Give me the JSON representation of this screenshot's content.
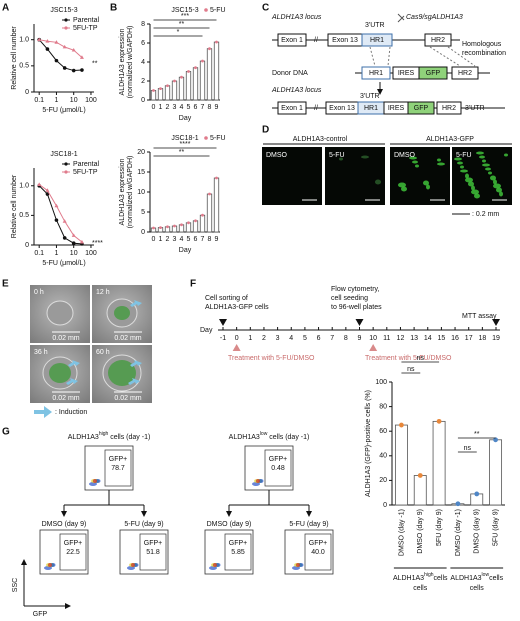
{
  "panel_labels": [
    "A",
    "B",
    "C",
    "D",
    "E",
    "F",
    "G"
  ],
  "chart_data": [
    {
      "type": "line",
      "title": "JSC15-3",
      "xlabel": "5-FU (μmol/L)",
      "ylabel": "Relative cell number",
      "log_x": true,
      "x": [
        0.1,
        0.3,
        1,
        3,
        10,
        30
      ],
      "xlim": [
        0.05,
        150
      ],
      "xticks": [
        0.1,
        1,
        10,
        100
      ],
      "ylim": [
        0,
        1.3
      ],
      "yticks": [
        0,
        0.5,
        {
          "value": 1,
          "label": "1.0"
        }
      ],
      "series": [
        {
          "name": "Parental",
          "color": "#111111",
          "values": [
            1.0,
            0.82,
            0.6,
            0.46,
            0.41,
            0.42
          ]
        },
        {
          "name": "5FU-TP",
          "color": "#e07b8c",
          "values": [
            1.0,
            0.97,
            0.95,
            0.86,
            0.8,
            0.66
          ]
        }
      ],
      "legend": "top-right",
      "annotations": [
        "**"
      ]
    },
    {
      "type": "line",
      "title": "JSC18-1",
      "xlabel": "5-FU (μmol/L)",
      "ylabel": "Relative cell number",
      "log_x": true,
      "x": [
        0.1,
        0.3,
        1,
        3,
        10,
        30
      ],
      "xlim": [
        0.05,
        150
      ],
      "xticks": [
        0.1,
        1,
        10,
        100
      ],
      "ylim": [
        0,
        1.3
      ],
      "yticks": [
        0,
        0.5,
        {
          "value": 1,
          "label": "1.0"
        }
      ],
      "series": [
        {
          "name": "Parental",
          "color": "#111111",
          "values": [
            1.0,
            0.86,
            0.42,
            0.12,
            0.03,
            0.02
          ]
        },
        {
          "name": "5FU-TP",
          "color": "#e07b8c",
          "values": [
            1.02,
            0.92,
            0.66,
            0.4,
            0.16,
            0.05
          ]
        }
      ],
      "legend": "top-right",
      "annotations": [
        "****"
      ]
    },
    {
      "type": "bar",
      "title": "JSC15-3",
      "xlabel": "Day",
      "ylabel": [
        "ALDH1A3 expression",
        "(normalized w/GAPDH)"
      ],
      "categories": [
        "0",
        "1",
        "2",
        "3",
        "4",
        "5",
        "6",
        "7",
        "8",
        "9"
      ],
      "series": [
        {
          "name": "5-FU",
          "color": "#e07b8c",
          "values": [
            1.0,
            1.2,
            1.5,
            2.0,
            2.4,
            3.0,
            3.4,
            4.1,
            5.4,
            6.1
          ]
        }
      ],
      "ylim": [
        0,
        8
      ],
      "yticks": [
        0,
        2,
        4,
        6,
        8
      ],
      "legend": "top-right",
      "annotations": [
        "***",
        "**",
        "*"
      ]
    },
    {
      "type": "bar",
      "title": "JSC18-1",
      "xlabel": "Day",
      "ylabel": [
        "ALDH1A3 expression",
        "(normalized w/GAPDH)"
      ],
      "categories": [
        "0",
        "1",
        "2",
        "3",
        "4",
        "5",
        "6",
        "7",
        "8",
        "9"
      ],
      "series": [
        {
          "name": "5-FU",
          "color": "#e07b8c",
          "values": [
            1.0,
            1.1,
            1.3,
            1.5,
            1.8,
            2.3,
            2.8,
            4.2,
            9.5,
            13.5
          ]
        }
      ],
      "ylim": [
        0,
        20
      ],
      "yticks": [
        0,
        5,
        10,
        15,
        20
      ],
      "legend": "top-right",
      "annotations": [
        "****",
        "**"
      ]
    },
    {
      "type": "bar",
      "ylabel": "ALDH1A3 (GFP)-positive cells (%)",
      "categories": [
        "DMSO (day -1)",
        "DMSO (day 9)",
        "5FU (day 9)",
        "DMSO (day -1)",
        "DMSO (day 9)",
        "5FU (day 9)"
      ],
      "values": [
        65,
        24,
        68,
        1,
        9,
        53
      ],
      "colors": [
        "#e8873a",
        "#e8873a",
        "#e8873a",
        "#4f86c6",
        "#4f86c6",
        "#4f86c6"
      ],
      "ylim": [
        0,
        100
      ],
      "yticks": [
        0,
        20,
        40,
        60,
        80,
        100
      ],
      "annotations": [
        "ns",
        "ns",
        "ns",
        "**"
      ],
      "groups": [
        {
          "name": "ALDH1A3",
          "sup": "high",
          "rest": "cells"
        },
        {
          "name": "ALDH1A3",
          "sup": "low",
          "rest": "cells"
        }
      ]
    }
  ],
  "construct": {
    "locus_label": "ALDH1A3 locus",
    "exon1": "Exon 1",
    "exon13": "Exon 13",
    "utr": "3'UTR",
    "hr1": "HR1",
    "hr2": "HR2",
    "cas9": "Cas9/sgALDH1A3",
    "hr_note": [
      "Homologous",
      "recombination"
    ],
    "donor": "Donor DNA",
    "ires": "IRES",
    "gfp": "GFP",
    "edited_locus_label": "ALDH1A3 locus"
  },
  "microscopy": {
    "groups": [
      "ALDH1A3-control",
      "ALDH1A3-GFP"
    ],
    "conditions": [
      "DMSO",
      "5-FU",
      "DMSO",
      "5-FU"
    ],
    "scale": ": 0.2 mm"
  },
  "timelapse": {
    "times": [
      "0 h",
      "12 h",
      "36 h",
      "60 h"
    ],
    "scale": "0.02 mm",
    "legend": ": Induction"
  },
  "timeline": {
    "day_label": "Day",
    "days": [
      -1,
      0,
      1,
      2,
      3,
      4,
      5,
      6,
      7,
      8,
      9,
      10,
      11,
      12,
      13,
      14,
      15,
      16,
      17,
      18,
      19
    ],
    "events": [
      [
        "Cell sorting of",
        "ALDH1A3-GFP cells"
      ],
      [
        "Flow cytometry,",
        "cell seeding",
        "to 96-well plates"
      ],
      [
        "MTT assay"
      ]
    ],
    "treatment": "Treatment with 5-FU/DMSO"
  },
  "flow": {
    "sources": [
      {
        "name": "ALDH1A3",
        "sup": "high",
        "rest": " cells (day -1)"
      },
      {
        "name": "ALDH1A3",
        "sup": "low",
        "rest": " cells (day -1)"
      }
    ],
    "plots": [
      {
        "gate": "GFP+",
        "value": "78.7"
      },
      {
        "gate": "GFP+",
        "value": "0.48"
      },
      {
        "title": "DMSO (day 9)",
        "gate": "GFP+",
        "value": "22.5"
      },
      {
        "title": "5-FU (day 9)",
        "gate": "GFP+",
        "value": "51.8"
      },
      {
        "title": "DMSO (day 9)",
        "gate": "GFP+",
        "value": "5.85"
      },
      {
        "title": "5-FU (day 9)",
        "gate": "GFP+",
        "value": "40.0"
      }
    ],
    "y_axis": "SSC",
    "x_axis": "GFP"
  }
}
